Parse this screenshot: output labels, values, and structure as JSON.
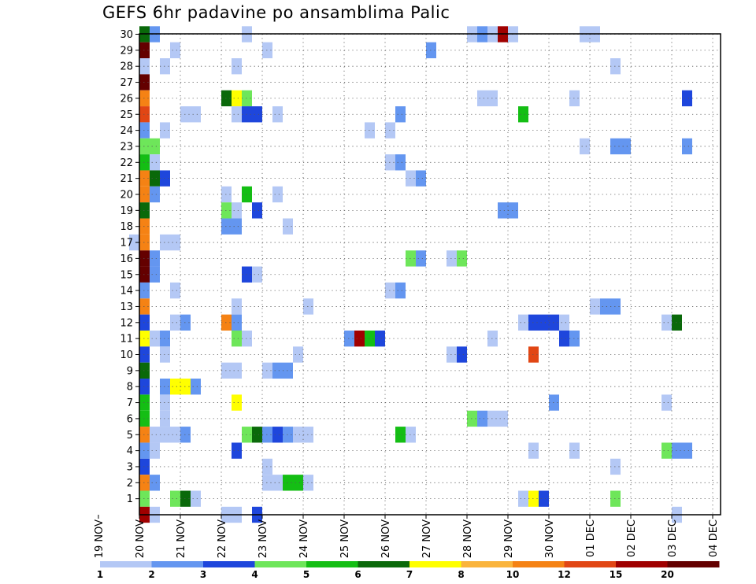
{
  "chart_data": {
    "type": "heatmap",
    "title": "GEFS 6hr padavine po ansamblima Palic",
    "xlabel": "",
    "ylabel": "",
    "y_range": [
      0,
      30
    ],
    "y_ticks": [
      "1",
      "2",
      "3",
      "4",
      "5",
      "6",
      "7",
      "8",
      "9",
      "10",
      "11",
      "12",
      "13",
      "14",
      "15",
      "16",
      "17",
      "18",
      "19",
      "20",
      "21",
      "22",
      "23",
      "24",
      "25",
      "26",
      "27",
      "28",
      "29",
      "30"
    ],
    "x_tick_labels": [
      "19 NOV",
      "20 NOV",
      "21 NOV",
      "22 NOV",
      "23 NOV",
      "24 NOV",
      "25 NOV",
      "26 NOV",
      "27 NOV",
      "28 NOV",
      "29 NOV",
      "30 NOV",
      "01 DEC",
      "02 DEC",
      "03 DEC",
      "04 DEC"
    ],
    "time_step_hours": 6,
    "grid": true,
    "colorbar": {
      "position": "bottom",
      "boundaries": [
        "1",
        "2",
        "3",
        "4",
        "5",
        "6",
        "7",
        "8",
        "10",
        "12",
        "15",
        "20"
      ],
      "colors": [
        "#b4c8f5",
        "#6496f0",
        "#1e46dc",
        "#6ee65a",
        "#14be14",
        "#0a690a",
        "#ffff00",
        "#fab43c",
        "#f58214",
        "#e14614",
        "#a00000",
        "#640000"
      ]
    },
    "cells": [
      [
        30,
        4,
        5
      ],
      [
        30,
        5,
        1
      ],
      [
        30,
        14,
        0
      ],
      [
        30,
        36,
        0
      ],
      [
        30,
        37,
        1
      ],
      [
        30,
        38,
        0
      ],
      [
        30,
        39,
        10
      ],
      [
        30,
        40,
        0
      ],
      [
        30,
        47,
        0
      ],
      [
        30,
        48,
        0
      ],
      [
        29,
        4,
        11
      ],
      [
        29,
        7,
        0
      ],
      [
        29,
        16,
        0
      ],
      [
        29,
        32,
        1
      ],
      [
        28,
        4,
        0
      ],
      [
        28,
        6,
        0
      ],
      [
        28,
        13,
        0
      ],
      [
        28,
        50,
        0
      ],
      [
        27,
        4,
        11
      ],
      [
        26,
        4,
        8
      ],
      [
        26,
        12,
        5
      ],
      [
        26,
        13,
        6
      ],
      [
        26,
        14,
        3
      ],
      [
        26,
        37,
        0
      ],
      [
        26,
        38,
        0
      ],
      [
        26,
        46,
        0
      ],
      [
        26,
        57,
        2
      ],
      [
        25,
        4,
        9
      ],
      [
        25,
        8,
        0
      ],
      [
        25,
        9,
        0
      ],
      [
        25,
        13,
        0
      ],
      [
        25,
        14,
        2
      ],
      [
        25,
        15,
        2
      ],
      [
        25,
        17,
        0
      ],
      [
        25,
        29,
        1
      ],
      [
        25,
        41,
        4
      ],
      [
        24,
        4,
        1
      ],
      [
        24,
        6,
        0
      ],
      [
        24,
        26,
        0
      ],
      [
        24,
        28,
        0
      ],
      [
        23,
        4,
        3
      ],
      [
        23,
        5,
        3
      ],
      [
        23,
        47,
        0
      ],
      [
        23,
        50,
        1
      ],
      [
        23,
        51,
        1
      ],
      [
        23,
        57,
        1
      ],
      [
        22,
        4,
        4
      ],
      [
        22,
        5,
        0
      ],
      [
        22,
        28,
        0
      ],
      [
        22,
        29,
        1
      ],
      [
        21,
        4,
        8
      ],
      [
        21,
        5,
        5
      ],
      [
        21,
        6,
        2
      ],
      [
        21,
        30,
        0
      ],
      [
        21,
        31,
        1
      ],
      [
        20,
        4,
        8
      ],
      [
        20,
        5,
        1
      ],
      [
        20,
        12,
        0
      ],
      [
        20,
        14,
        4
      ],
      [
        20,
        17,
        0
      ],
      [
        19,
        4,
        5
      ],
      [
        19,
        12,
        3
      ],
      [
        19,
        13,
        0
      ],
      [
        19,
        15,
        2
      ],
      [
        19,
        39,
        1
      ],
      [
        19,
        40,
        1
      ],
      [
        18,
        4,
        8
      ],
      [
        18,
        12,
        1
      ],
      [
        18,
        13,
        1
      ],
      [
        18,
        18,
        0
      ],
      [
        17,
        3,
        0
      ],
      [
        17,
        4,
        8
      ],
      [
        17,
        6,
        0
      ],
      [
        17,
        7,
        0
      ],
      [
        16,
        4,
        11
      ],
      [
        16,
        5,
        1
      ],
      [
        16,
        30,
        3
      ],
      [
        16,
        31,
        1
      ],
      [
        16,
        34,
        0
      ],
      [
        16,
        35,
        3
      ],
      [
        15,
        4,
        11
      ],
      [
        15,
        5,
        1
      ],
      [
        15,
        14,
        2
      ],
      [
        15,
        15,
        0
      ],
      [
        14,
        4,
        1
      ],
      [
        14,
        7,
        0
      ],
      [
        14,
        28,
        0
      ],
      [
        14,
        29,
        1
      ],
      [
        13,
        4,
        8
      ],
      [
        13,
        13,
        0
      ],
      [
        13,
        20,
        0
      ],
      [
        13,
        48,
        0
      ],
      [
        13,
        49,
        1
      ],
      [
        13,
        50,
        1
      ],
      [
        12,
        4,
        2
      ],
      [
        12,
        7,
        0
      ],
      [
        12,
        8,
        1
      ],
      [
        12,
        12,
        8
      ],
      [
        12,
        13,
        1
      ],
      [
        12,
        41,
        0
      ],
      [
        12,
        42,
        2
      ],
      [
        12,
        43,
        2
      ],
      [
        12,
        44,
        2
      ],
      [
        12,
        45,
        0
      ],
      [
        12,
        55,
        0
      ],
      [
        12,
        56,
        5
      ],
      [
        11,
        4,
        6
      ],
      [
        11,
        5,
        0
      ],
      [
        11,
        6,
        1
      ],
      [
        11,
        13,
        3
      ],
      [
        11,
        14,
        0
      ],
      [
        11,
        24,
        1
      ],
      [
        11,
        25,
        10
      ],
      [
        11,
        26,
        4
      ],
      [
        11,
        27,
        2
      ],
      [
        11,
        38,
        0
      ],
      [
        11,
        45,
        2
      ],
      [
        11,
        46,
        1
      ],
      [
        10,
        4,
        2
      ],
      [
        10,
        6,
        0
      ],
      [
        10,
        19,
        0
      ],
      [
        10,
        34,
        0
      ],
      [
        10,
        35,
        2
      ],
      [
        10,
        42,
        9
      ],
      [
        9,
        4,
        5
      ],
      [
        9,
        12,
        0
      ],
      [
        9,
        13,
        0
      ],
      [
        9,
        16,
        0
      ],
      [
        9,
        17,
        1
      ],
      [
        9,
        18,
        1
      ],
      [
        8,
        4,
        2
      ],
      [
        8,
        6,
        1
      ],
      [
        8,
        7,
        6
      ],
      [
        8,
        8,
        6
      ],
      [
        8,
        9,
        1
      ],
      [
        7,
        4,
        4
      ],
      [
        7,
        6,
        0
      ],
      [
        7,
        13,
        6
      ],
      [
        7,
        44,
        1
      ],
      [
        7,
        55,
        0
      ],
      [
        6,
        4,
        4
      ],
      [
        6,
        6,
        0
      ],
      [
        6,
        36,
        3
      ],
      [
        6,
        37,
        1
      ],
      [
        6,
        38,
        0
      ],
      [
        6,
        39,
        0
      ],
      [
        5,
        4,
        8
      ],
      [
        5,
        5,
        0
      ],
      [
        5,
        6,
        0
      ],
      [
        5,
        7,
        0
      ],
      [
        5,
        8,
        1
      ],
      [
        5,
        14,
        3
      ],
      [
        5,
        15,
        5
      ],
      [
        5,
        16,
        1
      ],
      [
        5,
        17,
        2
      ],
      [
        5,
        18,
        1
      ],
      [
        5,
        19,
        0
      ],
      [
        5,
        20,
        0
      ],
      [
        5,
        29,
        4
      ],
      [
        5,
        30,
        0
      ],
      [
        4,
        4,
        1
      ],
      [
        4,
        5,
        0
      ],
      [
        4,
        13,
        2
      ],
      [
        4,
        42,
        0
      ],
      [
        4,
        46,
        0
      ],
      [
        4,
        55,
        3
      ],
      [
        4,
        56,
        1
      ],
      [
        4,
        57,
        1
      ],
      [
        3,
        4,
        2
      ],
      [
        3,
        16,
        0
      ],
      [
        3,
        50,
        0
      ],
      [
        2,
        4,
        8
      ],
      [
        2,
        5,
        1
      ],
      [
        2,
        16,
        0
      ],
      [
        2,
        17,
        0
      ],
      [
        2,
        18,
        4
      ],
      [
        2,
        19,
        4
      ],
      [
        2,
        20,
        0
      ],
      [
        1,
        4,
        3
      ],
      [
        1,
        7,
        3
      ],
      [
        1,
        8,
        5
      ],
      [
        1,
        9,
        0
      ],
      [
        1,
        41,
        0
      ],
      [
        1,
        42,
        6
      ],
      [
        1,
        43,
        2
      ],
      [
        1,
        50,
        3
      ],
      [
        0,
        4,
        10
      ],
      [
        0,
        5,
        0
      ],
      [
        0,
        12,
        0
      ],
      [
        0,
        13,
        0
      ],
      [
        0,
        15,
        2
      ],
      [
        0,
        56,
        0
      ]
    ]
  }
}
